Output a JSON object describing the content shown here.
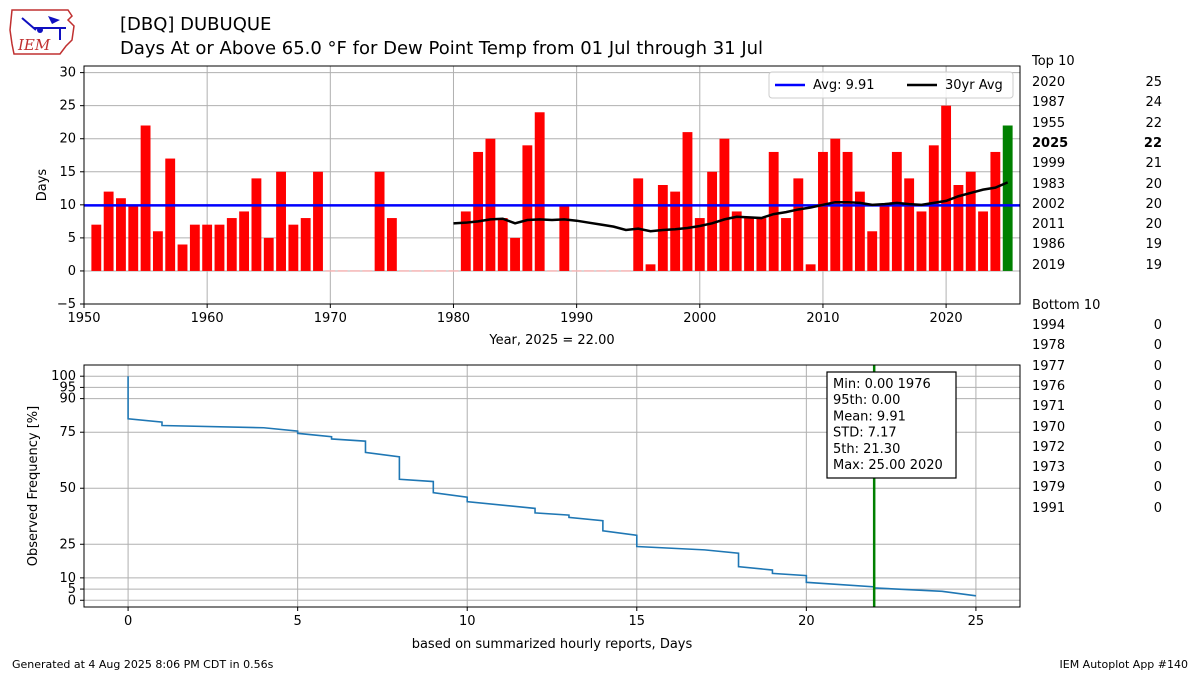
{
  "header": {
    "logo_text": "IEM",
    "title_line1": "[DBQ] DUBUQUE",
    "title_line2": "Days At or Above 65.0 °F for Dew Point Temp from 01 Jul through 31 Jul"
  },
  "footer": {
    "left": "Generated at 4 Aug 2025 8:06 PM CDT in 0.56s",
    "right": "IEM Autoplot App #140"
  },
  "top10": {
    "heading": "Top 10",
    "rows": [
      {
        "year": "2020",
        "value": "25",
        "bold": false
      },
      {
        "year": "1987",
        "value": "24",
        "bold": false
      },
      {
        "year": "1955",
        "value": "22",
        "bold": false
      },
      {
        "year": "2025",
        "value": "22",
        "bold": true
      },
      {
        "year": "1999",
        "value": "21",
        "bold": false
      },
      {
        "year": "1983",
        "value": "20",
        "bold": false
      },
      {
        "year": "2002",
        "value": "20",
        "bold": false
      },
      {
        "year": "2011",
        "value": "20",
        "bold": false
      },
      {
        "year": "1986",
        "value": "19",
        "bold": false
      },
      {
        "year": "2019",
        "value": "19",
        "bold": false
      }
    ]
  },
  "bottom10": {
    "heading": "Bottom 10",
    "rows": [
      {
        "year": "1994",
        "value": "0"
      },
      {
        "year": "1978",
        "value": "0"
      },
      {
        "year": "1977",
        "value": "0"
      },
      {
        "year": "1976",
        "value": "0"
      },
      {
        "year": "1971",
        "value": "0"
      },
      {
        "year": "1970",
        "value": "0"
      },
      {
        "year": "1972",
        "value": "0"
      },
      {
        "year": "1973",
        "value": "0"
      },
      {
        "year": "1979",
        "value": "0"
      },
      {
        "year": "1991",
        "value": "0"
      }
    ]
  },
  "colors": {
    "bar": "#ff0000",
    "highlight_bar": "#008000",
    "avg_line": "#0000ff",
    "trail_line": "#000000",
    "cdf_line": "#1f77b4",
    "marker_line": "#008000",
    "grid": "#b0b0b0",
    "zero_marker": "#f4b4b4"
  },
  "chart_data": [
    {
      "type": "bar",
      "xlabel": "Year, 2025 = 22.00",
      "ylabel": "Days",
      "xlim": [
        1950,
        2026
      ],
      "ylim": [
        -5,
        31
      ],
      "xticks": [
        1950,
        1960,
        1970,
        1980,
        1990,
        2000,
        2010,
        2020
      ],
      "yticks": [
        -5,
        0,
        5,
        10,
        15,
        20,
        25,
        30
      ],
      "grid": true,
      "legend_position": "top-right",
      "highlight_year": 2025,
      "average": 9.91,
      "legend": [
        "Avg: 9.91",
        "30yr Avg"
      ],
      "series": [
        {
          "name": "Days",
          "x": [
            1951,
            1952,
            1953,
            1954,
            1955,
            1956,
            1957,
            1958,
            1959,
            1960,
            1961,
            1962,
            1963,
            1964,
            1965,
            1966,
            1967,
            1968,
            1969,
            1970,
            1971,
            1972,
            1973,
            1974,
            1975,
            1976,
            1977,
            1978,
            1979,
            1980,
            1981,
            1982,
            1983,
            1984,
            1985,
            1986,
            1987,
            1988,
            1989,
            1990,
            1991,
            1992,
            1993,
            1994,
            1995,
            1996,
            1997,
            1998,
            1999,
            2000,
            2001,
            2002,
            2003,
            2004,
            2005,
            2006,
            2007,
            2008,
            2009,
            2010,
            2011,
            2012,
            2013,
            2014,
            2015,
            2016,
            2017,
            2018,
            2019,
            2020,
            2021,
            2022,
            2023,
            2024,
            2025
          ],
          "values": [
            7,
            12,
            11,
            10,
            22,
            6,
            17,
            4,
            7,
            7,
            7,
            8,
            9,
            14,
            5,
            15,
            7,
            8,
            15,
            0,
            0,
            0,
            0,
            15,
            8,
            0,
            0,
            0,
            0,
            0,
            9,
            18,
            20,
            8,
            5,
            19,
            24,
            0,
            10,
            0,
            0,
            0,
            0,
            0,
            14,
            1,
            13,
            12,
            21,
            8,
            15,
            20,
            9,
            8,
            8,
            18,
            8,
            14,
            1,
            18,
            20,
            18,
            12,
            6,
            10,
            18,
            14,
            9,
            19,
            25,
            13,
            15,
            9,
            18,
            22
          ]
        },
        {
          "name": "30yr Avg",
          "x": [
            1980,
            1981,
            1982,
            1983,
            1984,
            1985,
            1986,
            1987,
            1988,
            1989,
            1990,
            1991,
            1992,
            1993,
            1994,
            1995,
            1996,
            1997,
            1998,
            1999,
            2000,
            2001,
            2002,
            2003,
            2004,
            2005,
            2006,
            2007,
            2008,
            2009,
            2010,
            2011,
            2012,
            2013,
            2014,
            2015,
            2016,
            2017,
            2018,
            2019,
            2020,
            2021,
            2022,
            2023,
            2024,
            2025
          ],
          "values": [
            7.2,
            7.3,
            7.5,
            7.8,
            7.9,
            7.2,
            7.7,
            7.8,
            7.7,
            7.8,
            7.6,
            7.3,
            7.0,
            6.7,
            6.2,
            6.4,
            6.0,
            6.2,
            6.3,
            6.5,
            6.8,
            7.2,
            7.8,
            8.2,
            8.1,
            8.0,
            8.6,
            8.9,
            9.3,
            9.6,
            10.0,
            10.4,
            10.4,
            10.3,
            10.0,
            10.1,
            10.3,
            10.1,
            10.0,
            10.3,
            10.6,
            11.3,
            11.8,
            12.3,
            12.6,
            13.4
          ]
        }
      ]
    },
    {
      "type": "line",
      "xlabel": "based on summarized hourly reports, Days",
      "ylabel": "Observed Frequency [%]",
      "xlim": [
        -1.3,
        26.3
      ],
      "ylim": [
        -3,
        105
      ],
      "xticks": [
        0,
        5,
        10,
        15,
        20,
        25
      ],
      "yticks": [
        0,
        5,
        10,
        25,
        50,
        75,
        90,
        95,
        100
      ],
      "grid": true,
      "marker_x": 22,
      "stats": [
        "Min: 0.00 1976",
        "95th: 0.00",
        "Mean: 9.91",
        "STD: 7.17",
        "5th: 21.30",
        "Max: 25.00 2020"
      ],
      "series": [
        {
          "name": "Observed Frequency",
          "x": [
            0,
            0,
            1,
            1,
            4,
            5,
            5,
            6,
            6,
            7,
            7,
            8,
            8,
            9,
            9,
            10,
            10,
            12,
            12,
            13,
            13,
            14,
            14,
            15,
            15,
            17,
            18,
            18,
            19,
            19,
            20,
            20,
            22,
            22,
            24,
            25
          ],
          "values": [
            100,
            81,
            79.5,
            78,
            77,
            75.5,
            74.5,
            73,
            72,
            71,
            66,
            64,
            54,
            53,
            48,
            46,
            44,
            41,
            39,
            38,
            37,
            35.5,
            31,
            29,
            24,
            22.5,
            21,
            15,
            13.5,
            12,
            11,
            8,
            6,
            5.5,
            4,
            2
          ]
        }
      ]
    }
  ]
}
